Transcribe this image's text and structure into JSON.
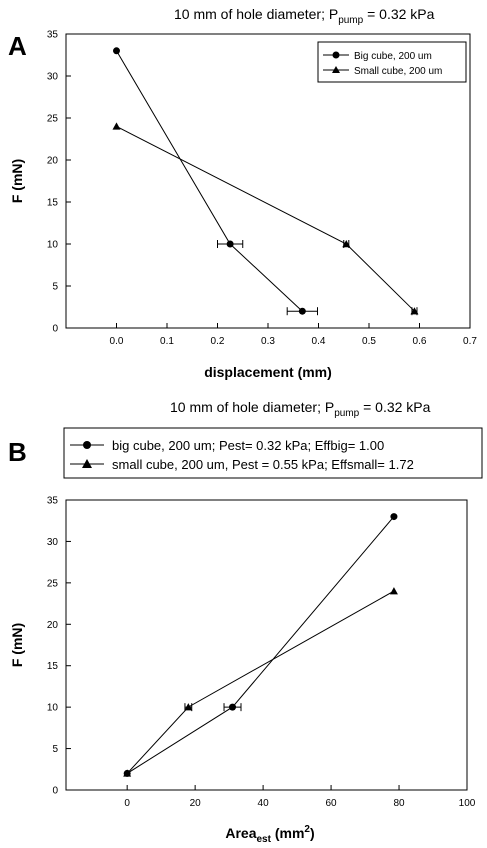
{
  "chart_data": [
    {
      "panel_label": "A",
      "type": "line",
      "title_main": "10 mm of hole diameter; P",
      "title_sub": "pump",
      "title_tail": " = 0.32 kPa",
      "xlabel": "displacement (mm)",
      "ylabel": "F (mN)",
      "xlim": [
        -0.1,
        0.7
      ],
      "ylim": [
        0,
        35
      ],
      "xticks": [
        0.0,
        0.1,
        0.2,
        0.3,
        0.4,
        0.5,
        0.6,
        0.7
      ],
      "xtick_labels": [
        "0.0",
        "0.1",
        "0.2",
        "0.3",
        "0.4",
        "0.5",
        "0.6",
        "0.7"
      ],
      "yticks": [
        0,
        5,
        10,
        15,
        20,
        25,
        30,
        35
      ],
      "ytick_labels": [
        "0",
        "5",
        "10",
        "15",
        "20",
        "25",
        "30",
        "35"
      ],
      "legend_position": "top-right",
      "series": [
        {
          "name": "Big cube, 200 um",
          "marker": "circle",
          "x": [
            0.0,
            0.225,
            0.368
          ],
          "y": [
            33,
            10,
            2
          ],
          "xerr": [
            0,
            0.025,
            0.03
          ]
        },
        {
          "name": "Small cube, 200 um",
          "marker": "triangle",
          "x": [
            0.0,
            0.455,
            0.59
          ],
          "y": [
            24,
            10,
            2
          ],
          "xerr": [
            0,
            0.005,
            0.005
          ]
        }
      ]
    },
    {
      "panel_label": "B",
      "type": "line",
      "title_main": "10 mm of hole diameter; P",
      "title_sub": "pump",
      "title_tail": " = 0.32 kPa",
      "xlabel_main": "Area",
      "xlabel_sub": "est",
      "xlabel_tail": " (mm",
      "xlabel_sup": "2",
      "xlabel_close": ")",
      "ylabel": "F (mN)",
      "xlim": [
        -18,
        100
      ],
      "ylim": [
        0,
        35
      ],
      "xticks": [
        0,
        20,
        40,
        60,
        80,
        100
      ],
      "xtick_labels": [
        "0",
        "20",
        "40",
        "60",
        "80",
        "100"
      ],
      "yticks": [
        0,
        5,
        10,
        15,
        20,
        25,
        30,
        35
      ],
      "ytick_labels": [
        "0",
        "5",
        "10",
        "15",
        "20",
        "25",
        "30",
        "35"
      ],
      "legend_position": "top (above plot)",
      "series": [
        {
          "name": "big cube, 200 um; Pest= 0.32 kPa; Effbig= 1.00",
          "marker": "circle",
          "x": [
            0,
            31,
            78.5
          ],
          "y": [
            2,
            10,
            33
          ],
          "xerr": [
            0,
            2.5,
            0
          ]
        },
        {
          "name": "small cube, 200 um, Pest = 0.55 kPa; Effsmall= 1.72",
          "marker": "triangle",
          "x": [
            0,
            18,
            78.5
          ],
          "y": [
            2,
            10,
            24
          ],
          "xerr": [
            0,
            1,
            0
          ]
        }
      ]
    }
  ]
}
